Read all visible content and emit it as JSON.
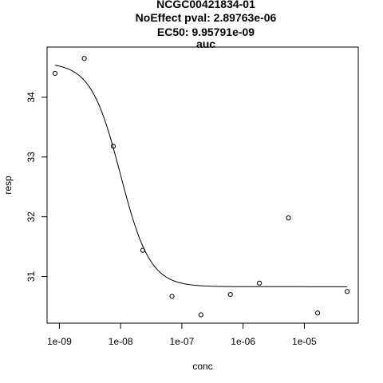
{
  "chart_data": {
    "type": "scatter",
    "title_lines": [
      "NCGC00421834-01",
      "NoEffect pval:  2.89763e-06",
      "EC50:  9.95791e-09",
      "auc"
    ],
    "xlabel": "conc",
    "ylabel": "resp",
    "x_scale": "log",
    "x_ticks": [
      {
        "value": 1e-09,
        "label": "1e-09"
      },
      {
        "value": 1e-08,
        "label": "1e-08"
      },
      {
        "value": 1e-07,
        "label": "1e-07"
      },
      {
        "value": 1e-06,
        "label": "1e-06"
      },
      {
        "value": 1e-05,
        "label": "1e-05"
      }
    ],
    "y_ticks": [
      {
        "value": 31,
        "label": "31"
      },
      {
        "value": 32,
        "label": "32"
      },
      {
        "value": 33,
        "label": "33"
      },
      {
        "value": 34,
        "label": "34"
      }
    ],
    "xlim": [
      6.3e-10,
      7.6e-05
    ],
    "ylim": [
      30.22,
      34.84
    ],
    "points": [
      {
        "x": 8.5e-10,
        "y": 34.4
      },
      {
        "x": 2.55e-09,
        "y": 34.65
      },
      {
        "x": 7.6e-09,
        "y": 33.18
      },
      {
        "x": 2.3e-08,
        "y": 31.44
      },
      {
        "x": 6.9e-08,
        "y": 30.67
      },
      {
        "x": 2.05e-07,
        "y": 30.36
      },
      {
        "x": 6.2e-07,
        "y": 30.7
      },
      {
        "x": 1.85e-06,
        "y": 30.89
      },
      {
        "x": 5.5e-06,
        "y": 31.98
      },
      {
        "x": 1.65e-05,
        "y": 30.39
      },
      {
        "x": 5e-05,
        "y": 30.75
      }
    ],
    "fit_curve": {
      "ec50": 9.95791e-09,
      "top": 34.58,
      "bottom": 30.83,
      "hill": 1.8
    }
  }
}
